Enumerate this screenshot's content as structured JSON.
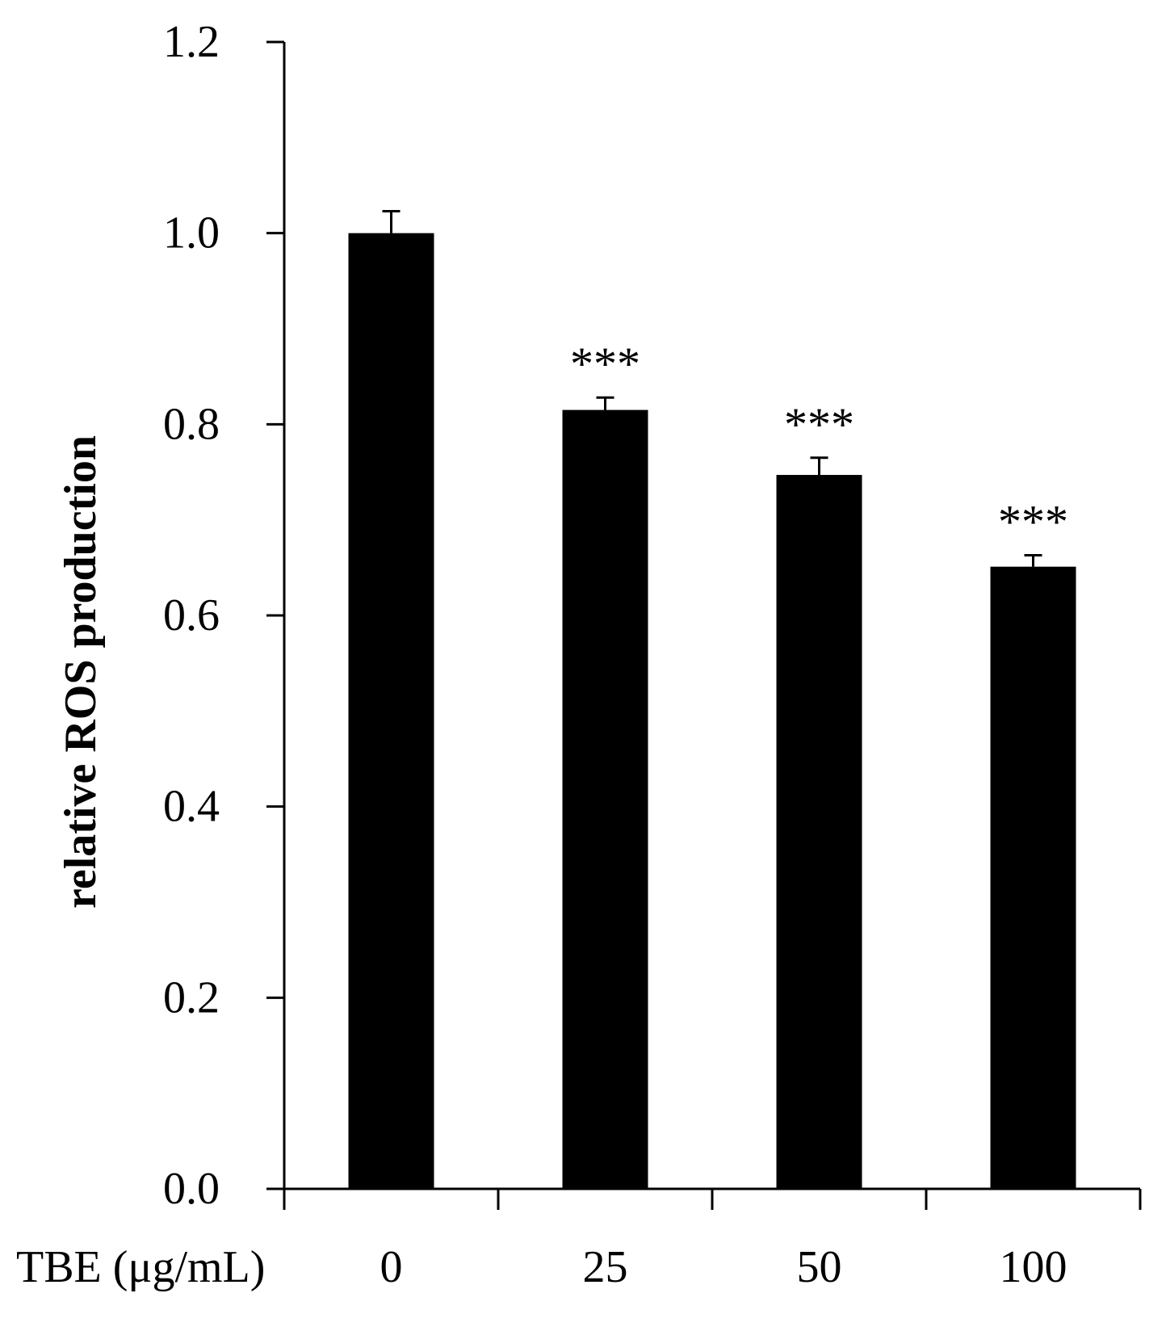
{
  "chart_data": {
    "type": "bar",
    "categories": [
      "0",
      "25",
      "50",
      "100"
    ],
    "values": [
      1.0,
      0.815,
      0.747,
      0.651
    ],
    "error": [
      0.023,
      0.013,
      0.018,
      0.012
    ],
    "significance": [
      "",
      "***",
      "***",
      "***"
    ],
    "xlabel": "TBE (μg/mL)",
    "ylabel": "relative ROS production",
    "ylim": [
      0,
      1.2
    ],
    "yticks": [
      "0.0",
      "0.2",
      "0.4",
      "0.6",
      "0.8",
      "1.0",
      "1.2"
    ],
    "ytick_values": [
      0,
      0.2,
      0.4,
      0.6,
      0.8,
      1.0,
      1.2
    ],
    "grid": false,
    "bar_color": "#000000"
  }
}
